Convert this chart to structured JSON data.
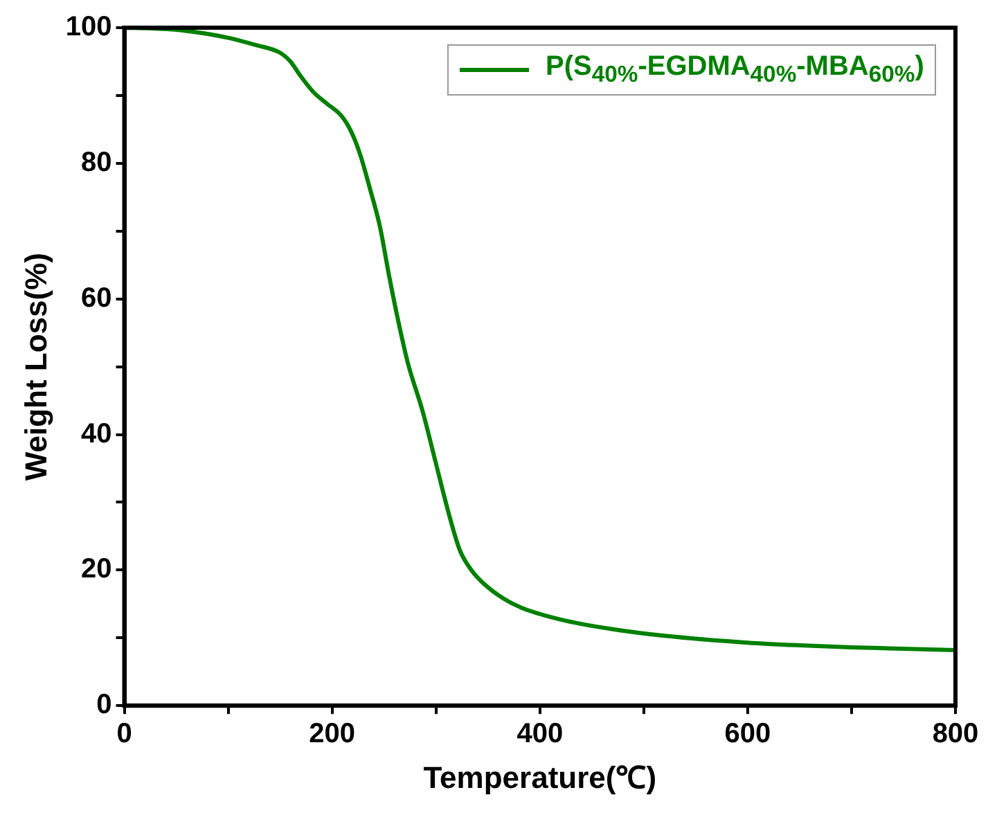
{
  "chart_data": {
    "type": "line",
    "xlabel": "Temperature(℃)",
    "ylabel": "Weight Loss(%)",
    "xlim": [
      0,
      800
    ],
    "ylim": [
      0,
      100
    ],
    "xticks": [
      0,
      {
        "value": 100,
        "label": null
      },
      200,
      {
        "value": 300,
        "label": null
      },
      400,
      {
        "value": 500,
        "label": null
      },
      600,
      {
        "value": 700,
        "label": null
      },
      800
    ],
    "yticks": [
      0,
      {
        "value": 10,
        "label": null
      },
      20,
      {
        "value": 30,
        "label": null
      },
      40,
      {
        "value": 50,
        "label": null
      },
      60,
      {
        "value": 70,
        "label": null
      },
      80,
      {
        "value": 90,
        "label": null
      },
      100
    ],
    "grid": false,
    "legend": "top right",
    "marker": "none",
    "line_style": "solid",
    "series": [
      {
        "name": "P(S$_{40%}$-EGDMA$_{40%}$-MBA$_{60%}$)",
        "color": "#008000",
        "x": [
          0,
          25,
          50,
          75,
          100,
          125,
          150,
          160,
          170,
          182,
          195,
          209,
          218,
          227,
          236,
          246,
          255,
          264,
          273,
          287,
          300,
          312,
          323,
          335,
          346,
          365,
          383,
          420,
          469,
          520,
          600,
          650,
          700,
          750,
          800
        ],
        "values": [
          100,
          99.9,
          99.7,
          99.2,
          98.5,
          97.5,
          96.3,
          95,
          92.8,
          90.5,
          88.8,
          87,
          84.8,
          81.3,
          76.5,
          70.7,
          63.3,
          56.5,
          50.5,
          43.5,
          35.7,
          28.5,
          22.9,
          19.8,
          18,
          15.8,
          14.4,
          12.7,
          11.3,
          10.3,
          9.3,
          8.9,
          8.6,
          8.4,
          8.2
        ]
      }
    ]
  }
}
